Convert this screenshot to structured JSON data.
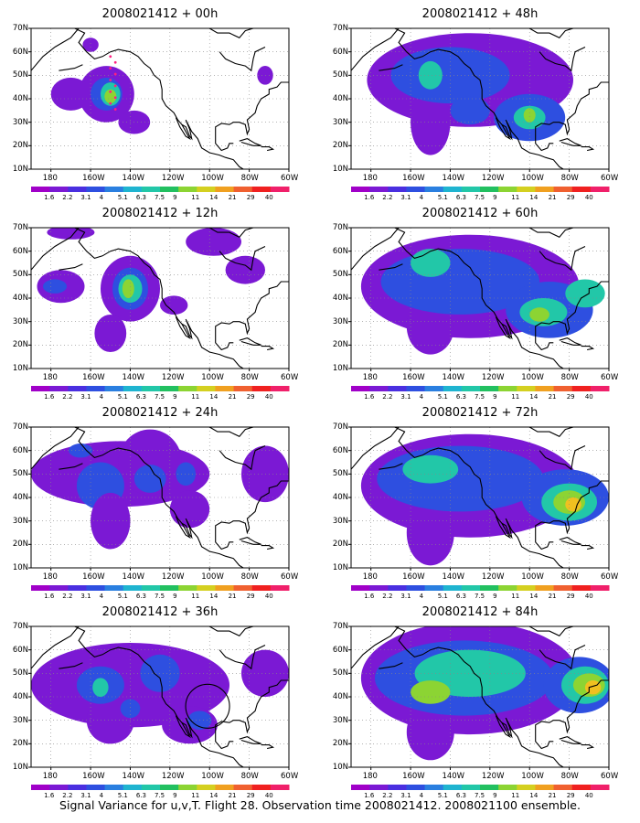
{
  "panels": [
    {
      "title": "2008021412 + 00h",
      "col": 0,
      "row": 0,
      "circle": false,
      "blobs": [
        [
          -152,
          42,
          14,
          12,
          "#7b19d4"
        ],
        [
          -170,
          42,
          10,
          7,
          "#7b19d4"
        ],
        [
          -152,
          42,
          8,
          7,
          "#2e4fe0"
        ],
        [
          -150,
          42,
          5,
          5,
          "#22c7a8"
        ],
        [
          -150,
          41,
          3,
          3,
          "#8cd433"
        ],
        [
          -138,
          30,
          8,
          5,
          "#7b19d4"
        ],
        [
          -160,
          63,
          4,
          3,
          "#7b19d4"
        ],
        [
          -72,
          50,
          4,
          4,
          "#7b19d4"
        ]
      ]
    },
    {
      "title": "2008021412 + 12h",
      "col": 0,
      "row": 1,
      "circle": false,
      "blobs": [
        [
          -175,
          45,
          12,
          7,
          "#7b19d4"
        ],
        [
          -178,
          45,
          6,
          3,
          "#2e4fe0"
        ],
        [
          -140,
          44,
          15,
          14,
          "#7b19d4"
        ],
        [
          -140,
          44,
          9,
          9,
          "#2e4fe0"
        ],
        [
          -140,
          44,
          6,
          6,
          "#22c7a8"
        ],
        [
          -141,
          44,
          3,
          4,
          "#8cd433"
        ],
        [
          -170,
          68,
          12,
          3,
          "#7b19d4"
        ],
        [
          -98,
          64,
          14,
          6,
          "#7b19d4"
        ],
        [
          -150,
          25,
          8,
          8,
          "#7b19d4"
        ],
        [
          -118,
          37,
          7,
          4,
          "#7b19d4"
        ],
        [
          -82,
          52,
          10,
          6,
          "#7b19d4"
        ]
      ]
    },
    {
      "title": "2008021412 + 24h",
      "col": 0,
      "row": 2,
      "circle": false,
      "blobs": [
        [
          -145,
          50,
          45,
          14,
          "#7b19d4"
        ],
        [
          -130,
          55,
          16,
          14,
          "#7b19d4"
        ],
        [
          -155,
          45,
          12,
          10,
          "#2e4fe0"
        ],
        [
          -130,
          48,
          8,
          6,
          "#2e4fe0"
        ],
        [
          -112,
          50,
          5,
          5,
          "#2e4fe0"
        ],
        [
          -150,
          30,
          10,
          12,
          "#7b19d4"
        ],
        [
          -110,
          35,
          10,
          8,
          "#7b19d4"
        ],
        [
          -72,
          50,
          12,
          12,
          "#7b19d4"
        ],
        [
          -165,
          60,
          6,
          3,
          "#2e4fe0"
        ]
      ]
    },
    {
      "title": "2008021412 + 36h",
      "col": 0,
      "row": 3,
      "circle": true,
      "blobs": [
        [
          -140,
          45,
          50,
          18,
          "#7b19d4"
        ],
        [
          -110,
          28,
          14,
          8,
          "#7b19d4"
        ],
        [
          -150,
          30,
          12,
          10,
          "#7b19d4"
        ],
        [
          -155,
          45,
          12,
          8,
          "#2e4fe0"
        ],
        [
          -125,
          50,
          10,
          8,
          "#2e4fe0"
        ],
        [
          -105,
          30,
          6,
          4,
          "#2e4fe0"
        ],
        [
          -155,
          44,
          4,
          4,
          "#22c7a8"
        ],
        [
          -72,
          50,
          12,
          10,
          "#7b19d4"
        ],
        [
          -140,
          35,
          5,
          4,
          "#2e4fe0"
        ]
      ]
    },
    {
      "title": "2008021412 + 48h",
      "col": 1,
      "row": 0,
      "circle": false,
      "blobs": [
        [
          -130,
          48,
          52,
          20,
          "#7b19d4"
        ],
        [
          -150,
          30,
          10,
          14,
          "#7b19d4"
        ],
        [
          -140,
          50,
          30,
          12,
          "#2e4fe0"
        ],
        [
          -100,
          32,
          18,
          10,
          "#2e4fe0"
        ],
        [
          -150,
          50,
          6,
          6,
          "#22c7a8"
        ],
        [
          -100,
          32,
          8,
          5,
          "#22c7a8"
        ],
        [
          -100,
          33,
          3,
          3,
          "#8cd433"
        ],
        [
          -130,
          35,
          10,
          6,
          "#2e4fe0"
        ]
      ]
    },
    {
      "title": "2008021412 + 60h",
      "col": 1,
      "row": 1,
      "circle": false,
      "blobs": [
        [
          -130,
          45,
          55,
          22,
          "#7b19d4"
        ],
        [
          -150,
          28,
          12,
          12,
          "#7b19d4"
        ],
        [
          -135,
          47,
          40,
          14,
          "#2e4fe0"
        ],
        [
          -150,
          55,
          10,
          6,
          "#22c7a8"
        ],
        [
          -90,
          35,
          22,
          12,
          "#2e4fe0"
        ],
        [
          -93,
          34,
          12,
          6,
          "#22c7a8"
        ],
        [
          -95,
          33,
          5,
          3,
          "#8cd433"
        ],
        [
          -72,
          42,
          10,
          6,
          "#22c7a8"
        ]
      ]
    },
    {
      "title": "2008021412 + 72h",
      "col": 1,
      "row": 2,
      "circle": false,
      "blobs": [
        [
          -130,
          45,
          55,
          22,
          "#7b19d4"
        ],
        [
          -150,
          25,
          12,
          14,
          "#7b19d4"
        ],
        [
          -135,
          48,
          42,
          14,
          "#2e4fe0"
        ],
        [
          -150,
          52,
          14,
          6,
          "#22c7a8"
        ],
        [
          -82,
          40,
          22,
          12,
          "#2e4fe0"
        ],
        [
          -80,
          38,
          14,
          8,
          "#22c7a8"
        ],
        [
          -80,
          38,
          8,
          5,
          "#8cd433"
        ],
        [
          -78,
          37,
          4,
          3,
          "#f0c020"
        ]
      ]
    },
    {
      "title": "2008021412 + 84h",
      "col": 1,
      "row": 3,
      "circle": false,
      "blobs": [
        [
          -130,
          48,
          55,
          24,
          "#7b19d4"
        ],
        [
          -150,
          25,
          12,
          12,
          "#7b19d4"
        ],
        [
          -133,
          48,
          45,
          16,
          "#2e4fe0"
        ],
        [
          -130,
          50,
          28,
          10,
          "#22c7a8"
        ],
        [
          -150,
          42,
          10,
          5,
          "#8cd433"
        ],
        [
          -75,
          45,
          18,
          12,
          "#2e4fe0"
        ],
        [
          -72,
          45,
          12,
          8,
          "#22c7a8"
        ],
        [
          -70,
          45,
          8,
          5,
          "#8cd433"
        ],
        [
          -68,
          44,
          4,
          3,
          "#f0c020"
        ]
      ]
    }
  ],
  "lat_ticks": [
    "70N",
    "60N",
    "50N",
    "40N",
    "30N",
    "20N",
    "10N"
  ],
  "lon_ticks": [
    "180",
    "160W",
    "140W",
    "120W",
    "100W",
    "80W",
    "60W"
  ],
  "colorbar": {
    "labels": [
      "1.6",
      "2.2",
      "3.1",
      "4",
      "5.1",
      "6.3",
      "7.5",
      "9",
      "11",
      "14",
      "21",
      "29",
      "40"
    ],
    "colors": [
      "#a000c8",
      "#7b19d4",
      "#4a2fe0",
      "#2e4fe0",
      "#2a7fe0",
      "#1fb4d0",
      "#22c7a8",
      "#22c060",
      "#8cd433",
      "#d4d020",
      "#f0a020",
      "#f06030",
      "#f02020",
      "#f0206a"
    ]
  },
  "footer": "Signal Variance for u,v,T. Flight 28. Observation time 2008021412. 2008021100 ensemble."
}
